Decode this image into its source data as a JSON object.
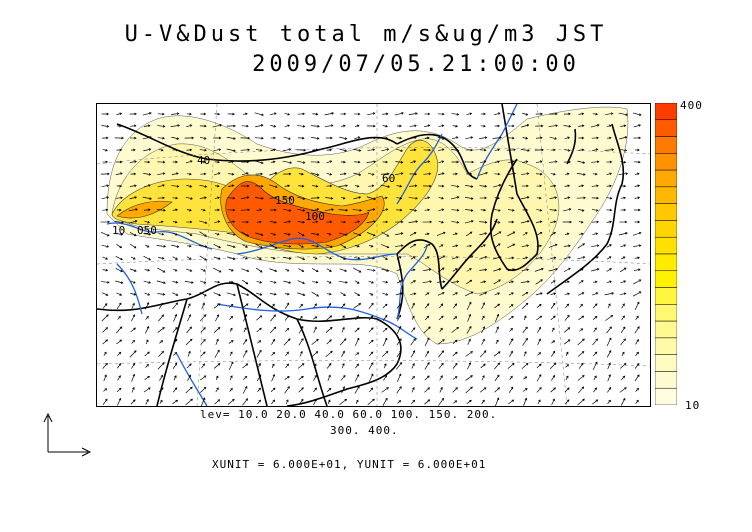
{
  "title": {
    "line1": "U-V&Dust total m/s&ug/m3 JST",
    "line2": "2009/07/05.21:00:00"
  },
  "contour_levels": {
    "line1": "lev= 10.0 20.0 40.0 60.0 100. 150. 200.",
    "line2": "300. 400."
  },
  "units_text": "XUNIT = 6.000E+01, YUNIT = 6.000E+01",
  "colorbar": {
    "max_label": "400",
    "min_label": "10",
    "colors": [
      "#ff3b00",
      "#ff5a00",
      "#ff7a00",
      "#ff9200",
      "#ffa800",
      "#ffb800",
      "#ffc800",
      "#ffd500",
      "#ffe000",
      "#ffea00",
      "#fff200",
      "#fff640",
      "#fff870",
      "#fff990",
      "#fffaaa",
      "#fffbbf",
      "#fffbd0",
      "#fffce0"
    ]
  },
  "map": {
    "region": "East Asia",
    "contour_labels": [
      "40",
      "150",
      "10",
      "050",
      "100",
      "60"
    ],
    "colors": {
      "coast": "#000000",
      "river": "#1f5fe0",
      "dust_low": "#fff6b0",
      "dust_mid": "#ffe23a",
      "dust_high": "#ff5a00"
    }
  }
}
